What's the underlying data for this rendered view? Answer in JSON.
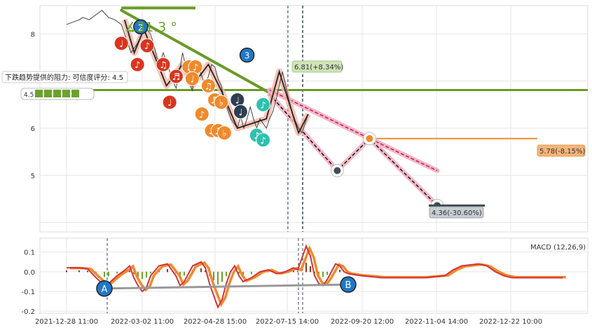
{
  "chart_data": [
    {
      "type": "line",
      "panel": "price",
      "yticks": [
        "8",
        "6",
        "5"
      ],
      "ylim": [
        3.8,
        8.6
      ],
      "grid": true,
      "price_series": [
        [
          0,
          8.2
        ],
        [
          2,
          8.25
        ],
        [
          4,
          8.3
        ],
        [
          5,
          8.35
        ],
        [
          7,
          8.3
        ],
        [
          9,
          8.4
        ],
        [
          11,
          8.5
        ],
        [
          13,
          8.35
        ],
        [
          15,
          8.3
        ],
        [
          17,
          8.2
        ],
        [
          18,
          8.0
        ],
        [
          19,
          7.8
        ],
        [
          20,
          7.6
        ],
        [
          21,
          7.7
        ],
        [
          22,
          7.8
        ],
        [
          23,
          7.95
        ],
        [
          24,
          8.05
        ],
        [
          25,
          8.1
        ],
        [
          26,
          8.0
        ],
        [
          27,
          7.8
        ],
        [
          28,
          7.5
        ],
        [
          29,
          7.4
        ],
        [
          30,
          7.6
        ],
        [
          31,
          7.4
        ],
        [
          32,
          7.2
        ],
        [
          33,
          7.0
        ],
        [
          34,
          6.85
        ],
        [
          35,
          7.2
        ],
        [
          36,
          7.6
        ],
        [
          37,
          7.3
        ],
        [
          38,
          7.0
        ],
        [
          39,
          6.8
        ],
        [
          40,
          7.1
        ],
        [
          41,
          7.3
        ],
        [
          42,
          7.1
        ],
        [
          43,
          6.9
        ],
        [
          44,
          7.1
        ],
        [
          45,
          7.35
        ],
        [
          46,
          7.3
        ],
        [
          47,
          7.05
        ],
        [
          48,
          6.9
        ],
        [
          49,
          6.6
        ],
        [
          50,
          6.4
        ],
        [
          51,
          6.2
        ],
        [
          52,
          6.1
        ],
        [
          53,
          6.0
        ],
        [
          54,
          6.25
        ],
        [
          55,
          6.0
        ],
        [
          56,
          6.2
        ],
        [
          57,
          6.45
        ],
        [
          58,
          6.2
        ],
        [
          59,
          6.0
        ],
        [
          60,
          6.2
        ],
        [
          61,
          6.1
        ],
        [
          62,
          6.0
        ],
        [
          63,
          6.2
        ],
        [
          64,
          6.35
        ],
        [
          65,
          6.6
        ],
        [
          66,
          6.9
        ],
        [
          67,
          7.2
        ],
        [
          68,
          6.9
        ],
        [
          69,
          6.6
        ],
        [
          70,
          6.35
        ],
        [
          71,
          6.15
        ],
        [
          72,
          6.0
        ],
        [
          73,
          5.9
        ],
        [
          74,
          6.1
        ],
        [
          75,
          6.3
        ]
      ],
      "zigzag_points": [
        [
          18,
          8.3
        ],
        [
          21,
          7.6
        ],
        [
          24,
          8.1
        ],
        [
          31,
          6.9
        ],
        [
          36,
          7.35
        ],
        [
          39,
          6.9
        ],
        [
          44,
          7.35
        ],
        [
          48,
          6.8
        ],
        [
          53,
          6.0
        ],
        [
          62,
          6.2
        ],
        [
          66,
          7.2
        ],
        [
          72,
          5.9
        ],
        [
          75,
          6.3
        ]
      ],
      "music_markers": [
        {
          "x": 17,
          "y": 7.8,
          "glyph": "♩",
          "color": "#d9351f"
        },
        {
          "x": 22,
          "y": 7.35,
          "glyph": "♪",
          "color": "#d9351f"
        },
        {
          "x": 25,
          "y": 7.75,
          "glyph": "♪",
          "color": "#d9351f"
        },
        {
          "x": 30,
          "y": 7.35,
          "glyph": "♫",
          "color": "#d9351f"
        },
        {
          "x": 32,
          "y": 6.55,
          "glyph": "♩",
          "color": "#d9351f"
        },
        {
          "x": 34,
          "y": 7.1,
          "glyph": "♬",
          "color": "#d9351f"
        },
        {
          "x": 38,
          "y": 7.3,
          "glyph": "♩",
          "color": "#f08a2c"
        },
        {
          "x": 40,
          "y": 7.3,
          "glyph": "♪",
          "color": "#f08a2c"
        },
        {
          "x": 39,
          "y": 7.05,
          "glyph": "♩",
          "color": "#f08a2c"
        },
        {
          "x": 44,
          "y": 6.9,
          "glyph": "♫",
          "color": "#f08a2c"
        },
        {
          "x": 42,
          "y": 6.3,
          "glyph": "♪",
          "color": "#f08a2c"
        },
        {
          "x": 46,
          "y": 6.6,
          "glyph": "♬",
          "color": "#f08a2c"
        },
        {
          "x": 48,
          "y": 6.55,
          "glyph": "♭",
          "color": "#f08a2c"
        },
        {
          "x": 45,
          "y": 5.95,
          "glyph": "♫",
          "color": "#f08a2c"
        },
        {
          "x": 47,
          "y": 5.95,
          "glyph": "♫",
          "color": "#f08a2c"
        },
        {
          "x": 49,
          "y": 5.9,
          "glyph": "♭",
          "color": "#f08a2c"
        },
        {
          "x": 53,
          "y": 6.6,
          "glyph": "♩",
          "color": "#2d3e50"
        },
        {
          "x": 54,
          "y": 6.35,
          "glyph": "♩",
          "color": "#2d3e50"
        },
        {
          "x": 61,
          "y": 6.5,
          "glyph": "♪",
          "color": "#2ec1b0"
        },
        {
          "x": 59,
          "y": 5.85,
          "glyph": "♪",
          "color": "#2ec1b0"
        },
        {
          "x": 61,
          "y": 5.75,
          "glyph": "♪",
          "color": "#2ec1b0"
        }
      ],
      "wave_labels": [
        {
          "text": "2",
          "x": 23,
          "y": 8.15
        },
        {
          "text": "3",
          "x": 56,
          "y": 7.55
        }
      ],
      "angle_label": "∡31.3 °",
      "resistance_text": "下跌趋势提供的阻力: 可信度评分: 4.5",
      "rating_prefix": "4.5",
      "rating_stars": 5,
      "projections": [
        {
          "label": "6.81(+8.34%)",
          "value": 6.81
        },
        {
          "label": "5.78(-8.15%)",
          "value": 5.78
        },
        {
          "label": "4.36(-30.60%)",
          "value": 4.36
        }
      ],
      "projection_path_down": [
        [
          63,
          6.72
        ],
        [
          84,
          5.1
        ],
        [
          94,
          5.78
        ],
        [
          115,
          4.36
        ]
      ],
      "projection_band_upper": [
        [
          63,
          6.81
        ],
        [
          94,
          5.78
        ],
        [
          115,
          5.1
        ]
      ],
      "trendline": [
        [
          17,
          8.5
        ],
        [
          63,
          6.75
        ]
      ],
      "support_level": 6.81
    },
    {
      "type": "line",
      "panel": "macd",
      "legend": "MACD (12,26,9)",
      "yticks": [
        "0.1",
        "0.0",
        "-0.1",
        "-0.2"
      ],
      "ylim": [
        -0.21,
        0.17
      ],
      "xticks": [
        "2021-12-28 11:00",
        "2022-03-02 11:00",
        "2022-04-28 15:00",
        "2022-07-15 14:00",
        "2022-09-20 12:00",
        "2022-11-04 14:00",
        "2022-12-22 10:00"
      ],
      "markers": [
        {
          "text": "A",
          "x": 9,
          "y": -0.085
        },
        {
          "text": "B",
          "x": 67,
          "y": -0.065
        }
      ],
      "divergence_line": [
        [
          9,
          -0.085
        ],
        [
          67,
          -0.065
        ]
      ],
      "macd_series": [
        [
          0,
          0.02
        ],
        [
          3,
          0.02
        ],
        [
          5,
          0.015
        ],
        [
          7,
          -0.03
        ],
        [
          9,
          -0.07
        ],
        [
          10,
          -0.06
        ],
        [
          12,
          -0.02
        ],
        [
          14,
          0.01
        ],
        [
          15,
          0.03
        ],
        [
          16,
          -0.03
        ],
        [
          17,
          -0.07
        ],
        [
          18,
          -0.1
        ],
        [
          19,
          -0.08
        ],
        [
          20,
          -0.02
        ],
        [
          22,
          0.03
        ],
        [
          24,
          0.04
        ],
        [
          26,
          -0.02
        ],
        [
          27,
          -0.07
        ],
        [
          28,
          -0.05
        ],
        [
          30,
          0.03
        ],
        [
          32,
          0.05
        ],
        [
          33,
          0.02
        ],
        [
          34,
          -0.06
        ],
        [
          35,
          -0.12
        ],
        [
          36,
          -0.18
        ],
        [
          37,
          -0.14
        ],
        [
          38,
          -0.06
        ],
        [
          39,
          0.0
        ],
        [
          40,
          0.03
        ],
        [
          41,
          -0.02
        ],
        [
          42,
          -0.05
        ],
        [
          44,
          -0.03
        ],
        [
          46,
          0.0
        ],
        [
          48,
          0.01
        ],
        [
          50,
          -0.01
        ],
        [
          52,
          0.0
        ],
        [
          54,
          0.02
        ],
        [
          55,
          0.01
        ],
        [
          57,
          0.13
        ],
        [
          58,
          0.08
        ],
        [
          59,
          -0.02
        ],
        [
          60,
          -0.06
        ],
        [
          61,
          -0.07
        ],
        [
          62,
          -0.04
        ],
        [
          63,
          0.0
        ],
        [
          64,
          0.04
        ],
        [
          65,
          0.03
        ],
        [
          66,
          0.0
        ],
        [
          67,
          -0.01
        ],
        [
          70,
          -0.02
        ],
        [
          75,
          -0.03
        ],
        [
          85,
          -0.03
        ],
        [
          90,
          -0.02
        ],
        [
          92,
          0.01
        ],
        [
          94,
          0.03
        ],
        [
          98,
          0.04
        ],
        [
          100,
          0.03
        ],
        [
          102,
          0.0
        ],
        [
          104,
          -0.02
        ],
        [
          106,
          -0.03
        ],
        [
          118,
          -0.03
        ]
      ]
    }
  ]
}
